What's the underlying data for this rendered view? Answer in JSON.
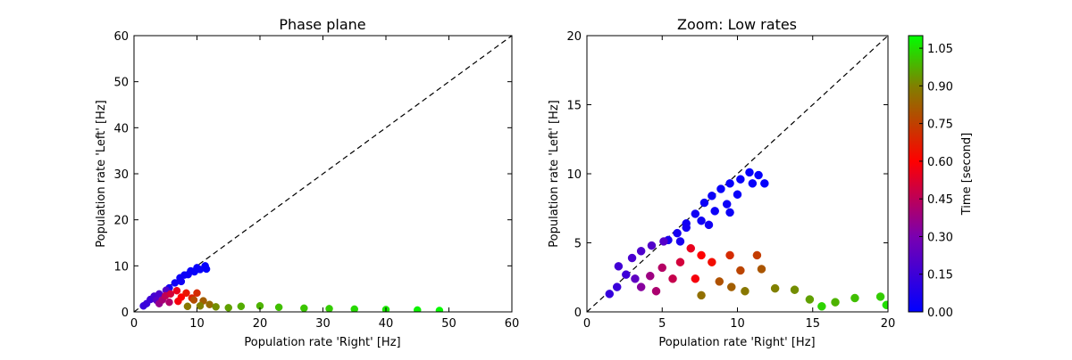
{
  "chart_data": [
    {
      "type": "scatter",
      "title": "Phase plane",
      "xlabel": "Population rate 'Right' [Hz]",
      "ylabel": "Population rate 'Left' [Hz]",
      "xlim": [
        0,
        60
      ],
      "ylim": [
        0,
        60
      ],
      "xticks": [
        0,
        10,
        20,
        30,
        40,
        50,
        60
      ],
      "yticks": [
        0,
        10,
        20,
        30,
        40,
        50,
        60
      ],
      "reference_line": "dashed diagonal y = x",
      "grid": false,
      "color_by": "time",
      "points": [
        {
          "x": 1.5,
          "y": 1.3,
          "t": 0.13
        },
        {
          "x": 2.0,
          "y": 1.8,
          "t": 0.14
        },
        {
          "x": 2.6,
          "y": 2.7,
          "t": 0.15
        },
        {
          "x": 3.2,
          "y": 3.4,
          "t": 0.17
        },
        {
          "x": 4.0,
          "y": 3.9,
          "t": 0.19
        },
        {
          "x": 5.1,
          "y": 4.7,
          "t": 0.2
        },
        {
          "x": 3.6,
          "y": 2.5,
          "t": 0.22
        },
        {
          "x": 5.6,
          "y": 5.2,
          "t": 0.05
        },
        {
          "x": 6.5,
          "y": 6.3,
          "t": 0.04
        },
        {
          "x": 7.3,
          "y": 7.4,
          "t": 0.03
        },
        {
          "x": 8.0,
          "y": 8.0,
          "t": 0.03
        },
        {
          "x": 9.0,
          "y": 8.9,
          "t": 0.02
        },
        {
          "x": 10.0,
          "y": 9.6,
          "t": 0.02
        },
        {
          "x": 11.3,
          "y": 10.0,
          "t": 0.01
        },
        {
          "x": 11.5,
          "y": 9.3,
          "t": 0.01
        },
        {
          "x": 10.5,
          "y": 9.2,
          "t": 0.02
        },
        {
          "x": 9.6,
          "y": 8.7,
          "t": 0.02
        },
        {
          "x": 8.6,
          "y": 8.1,
          "t": 0.03
        },
        {
          "x": 7.5,
          "y": 6.6,
          "t": 0.04
        },
        {
          "x": 4.5,
          "y": 2.6,
          "t": 0.4
        },
        {
          "x": 5.0,
          "y": 3.5,
          "t": 0.45
        },
        {
          "x": 5.8,
          "y": 3.9,
          "t": 0.5
        },
        {
          "x": 6.8,
          "y": 4.6,
          "t": 0.55
        },
        {
          "x": 7.5,
          "y": 3.2,
          "t": 0.6
        },
        {
          "x": 4.0,
          "y": 1.8,
          "t": 0.36
        },
        {
          "x": 5.6,
          "y": 2.1,
          "t": 0.42
        },
        {
          "x": 8.3,
          "y": 4.1,
          "t": 0.65
        },
        {
          "x": 10.0,
          "y": 4.1,
          "t": 0.7
        },
        {
          "x": 9.2,
          "y": 3.0,
          "t": 0.68
        },
        {
          "x": 7.0,
          "y": 2.3,
          "t": 0.58
        },
        {
          "x": 9.5,
          "y": 2.6,
          "t": 0.78
        },
        {
          "x": 11.0,
          "y": 2.4,
          "t": 0.82
        },
        {
          "x": 12.0,
          "y": 1.6,
          "t": 0.85
        },
        {
          "x": 8.5,
          "y": 1.2,
          "t": 0.88
        },
        {
          "x": 10.5,
          "y": 1.3,
          "t": 0.9
        },
        {
          "x": 13.0,
          "y": 1.1,
          "t": 0.92
        },
        {
          "x": 15.0,
          "y": 0.9,
          "t": 0.95
        },
        {
          "x": 17.0,
          "y": 1.2,
          "t": 0.97
        },
        {
          "x": 20.0,
          "y": 1.3,
          "t": 0.98
        },
        {
          "x": 23.0,
          "y": 1.0,
          "t": 1.0
        },
        {
          "x": 27.0,
          "y": 0.8,
          "t": 1.01
        },
        {
          "x": 31.0,
          "y": 0.7,
          "t": 1.02
        },
        {
          "x": 35.0,
          "y": 0.6,
          "t": 1.04
        },
        {
          "x": 40.0,
          "y": 0.5,
          "t": 1.06
        },
        {
          "x": 45.0,
          "y": 0.4,
          "t": 1.08
        },
        {
          "x": 48.5,
          "y": 0.3,
          "t": 1.09
        }
      ]
    },
    {
      "type": "scatter",
      "title": "Zoom: Low rates",
      "xlabel": "Population rate 'Right' [Hz]",
      "ylabel": "Population rate 'Left' [Hz]",
      "xlim": [
        0,
        20
      ],
      "ylim": [
        0,
        20
      ],
      "xticks": [
        0,
        5,
        10,
        15,
        20
      ],
      "yticks": [
        0,
        5,
        10,
        15,
        20
      ],
      "reference_line": "dashed diagonal y = x",
      "grid": false,
      "color_by": "time",
      "points": [
        {
          "x": 1.5,
          "y": 1.3,
          "t": 0.13
        },
        {
          "x": 2.0,
          "y": 1.8,
          "t": 0.14
        },
        {
          "x": 2.1,
          "y": 3.3,
          "t": 0.16
        },
        {
          "x": 2.6,
          "y": 2.7,
          "t": 0.15
        },
        {
          "x": 3.0,
          "y": 3.9,
          "t": 0.18
        },
        {
          "x": 3.6,
          "y": 4.4,
          "t": 0.19
        },
        {
          "x": 4.3,
          "y": 4.8,
          "t": 0.2
        },
        {
          "x": 5.1,
          "y": 5.1,
          "t": 0.21
        },
        {
          "x": 3.2,
          "y": 2.4,
          "t": 0.23
        },
        {
          "x": 5.4,
          "y": 5.2,
          "t": 0.06
        },
        {
          "x": 6.0,
          "y": 5.7,
          "t": 0.05
        },
        {
          "x": 6.6,
          "y": 6.4,
          "t": 0.04
        },
        {
          "x": 7.2,
          "y": 7.1,
          "t": 0.04
        },
        {
          "x": 7.8,
          "y": 7.9,
          "t": 0.03
        },
        {
          "x": 8.3,
          "y": 8.4,
          "t": 0.03
        },
        {
          "x": 8.9,
          "y": 8.9,
          "t": 0.02
        },
        {
          "x": 9.5,
          "y": 9.3,
          "t": 0.02
        },
        {
          "x": 10.2,
          "y": 9.6,
          "t": 0.02
        },
        {
          "x": 10.8,
          "y": 10.1,
          "t": 0.01
        },
        {
          "x": 11.4,
          "y": 9.9,
          "t": 0.01
        },
        {
          "x": 11.8,
          "y": 9.3,
          "t": 0.01
        },
        {
          "x": 11.0,
          "y": 9.3,
          "t": 0.02
        },
        {
          "x": 10.0,
          "y": 8.5,
          "t": 0.02
        },
        {
          "x": 9.3,
          "y": 7.8,
          "t": 0.03
        },
        {
          "x": 8.5,
          "y": 7.3,
          "t": 0.03
        },
        {
          "x": 7.6,
          "y": 6.6,
          "t": 0.04
        },
        {
          "x": 6.6,
          "y": 6.1,
          "t": 0.05
        },
        {
          "x": 6.2,
          "y": 5.1,
          "t": 0.06
        },
        {
          "x": 8.1,
          "y": 6.3,
          "t": 0.04
        },
        {
          "x": 9.5,
          "y": 7.2,
          "t": 0.03
        },
        {
          "x": 3.6,
          "y": 1.8,
          "t": 0.33
        },
        {
          "x": 4.2,
          "y": 2.6,
          "t": 0.38
        },
        {
          "x": 5.0,
          "y": 3.2,
          "t": 0.43
        },
        {
          "x": 5.7,
          "y": 2.4,
          "t": 0.47
        },
        {
          "x": 6.2,
          "y": 3.6,
          "t": 0.5
        },
        {
          "x": 6.9,
          "y": 4.6,
          "t": 0.55
        },
        {
          "x": 7.6,
          "y": 4.1,
          "t": 0.6
        },
        {
          "x": 4.6,
          "y": 1.5,
          "t": 0.41
        },
        {
          "x": 7.2,
          "y": 2.4,
          "t": 0.58
        },
        {
          "x": 8.3,
          "y": 3.6,
          "t": 0.63
        },
        {
          "x": 9.5,
          "y": 4.1,
          "t": 0.7
        },
        {
          "x": 11.3,
          "y": 4.1,
          "t": 0.74
        },
        {
          "x": 10.2,
          "y": 3.0,
          "t": 0.76
        },
        {
          "x": 8.8,
          "y": 2.2,
          "t": 0.79
        },
        {
          "x": 11.6,
          "y": 3.1,
          "t": 0.8
        },
        {
          "x": 9.6,
          "y": 1.8,
          "t": 0.82
        },
        {
          "x": 7.6,
          "y": 1.2,
          "t": 0.86
        },
        {
          "x": 10.5,
          "y": 1.5,
          "t": 0.88
        },
        {
          "x": 12.5,
          "y": 1.7,
          "t": 0.9
        },
        {
          "x": 13.8,
          "y": 1.6,
          "t": 0.92
        },
        {
          "x": 14.8,
          "y": 0.9,
          "t": 0.95
        },
        {
          "x": 16.5,
          "y": 0.7,
          "t": 0.98
        },
        {
          "x": 17.8,
          "y": 1.0,
          "t": 1.0
        },
        {
          "x": 19.5,
          "y": 1.1,
          "t": 1.02
        },
        {
          "x": 19.9,
          "y": 0.5,
          "t": 1.05
        },
        {
          "x": 15.6,
          "y": 0.4,
          "t": 1.03
        }
      ]
    }
  ],
  "colorbar": {
    "label": "Time [second]",
    "range": [
      0.0,
      1.1
    ],
    "ticks": [
      "0.00",
      "0.15",
      "0.30",
      "0.45",
      "0.60",
      "0.75",
      "0.90",
      "1.05"
    ],
    "tick_values": [
      0.0,
      0.15,
      0.3,
      0.45,
      0.6,
      0.75,
      0.9,
      1.05
    ],
    "colormap": [
      {
        "value": 0.0,
        "color": "#0000ff"
      },
      {
        "value": 0.3,
        "color": "#7a00b0"
      },
      {
        "value": 0.6,
        "color": "#ff0000"
      },
      {
        "value": 0.9,
        "color": "#808000"
      },
      {
        "value": 1.1,
        "color": "#00ff00"
      }
    ]
  }
}
